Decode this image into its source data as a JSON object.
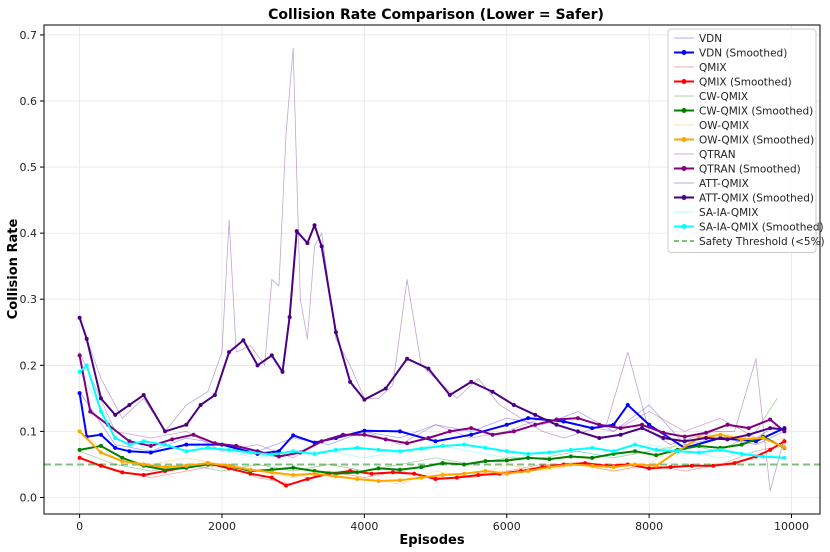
{
  "chart_data": {
    "type": "line",
    "title": "Collision Rate Comparison (Lower = Safer)",
    "xlabel": "Episodes",
    "ylabel": "Collision Rate",
    "xlim": [
      -500,
      10400
    ],
    "ylim": [
      -0.025,
      0.715
    ],
    "x_ticks": [
      0,
      2000,
      4000,
      6000,
      8000,
      10000
    ],
    "x_tick_labels": [
      "0",
      "2000",
      "4000",
      "6000",
      "8000",
      "10000"
    ],
    "y_ticks": [
      0.0,
      0.1,
      0.2,
      0.3,
      0.4,
      0.5,
      0.6,
      0.7
    ],
    "y_tick_labels": [
      "0.0",
      "0.1",
      "0.2",
      "0.3",
      "0.4",
      "0.5",
      "0.6",
      "0.7"
    ],
    "grid": true,
    "legend_position": "top-right",
    "threshold": {
      "label": "Safety Threshold (<5%)",
      "value": 0.05,
      "color": "#7fbf7f"
    },
    "series": [
      {
        "name": "VDN",
        "color": "#0000ff",
        "kind": "raw",
        "x": [
          0,
          500,
          1000,
          1500,
          2000,
          2500,
          3000,
          3500,
          4000,
          4500,
          5000,
          5500,
          6000,
          6500,
          7000,
          7500,
          8000,
          8500,
          9000,
          9500,
          9900
        ],
        "y": [
          0.16,
          0.08,
          0.07,
          0.09,
          0.08,
          0.07,
          0.09,
          0.08,
          0.1,
          0.09,
          0.11,
          0.1,
          0.12,
          0.11,
          0.13,
          0.1,
          0.14,
          0.08,
          0.09,
          0.08,
          0.1
        ]
      },
      {
        "name": "VDN (Smoothed)",
        "color": "#0000ff",
        "kind": "smooth",
        "x": [
          0,
          100,
          300,
          500,
          700,
          1000,
          1500,
          2000,
          2500,
          2800,
          3000,
          3300,
          3600,
          4000,
          4500,
          5000,
          5500,
          6000,
          6300,
          6800,
          7200,
          7500,
          7700,
          8000,
          8500,
          9000,
          9500,
          9900
        ],
        "y": [
          0.158,
          0.092,
          0.095,
          0.075,
          0.07,
          0.068,
          0.08,
          0.08,
          0.066,
          0.07,
          0.094,
          0.083,
          0.09,
          0.101,
          0.1,
          0.085,
          0.095,
          0.11,
          0.12,
          0.115,
          0.105,
          0.11,
          0.14,
          0.11,
          0.075,
          0.09,
          0.085,
          0.105
        ]
      },
      {
        "name": "QMIX",
        "color": "#ff0000",
        "kind": "raw",
        "x": [
          0,
          500,
          1000,
          1500,
          2000,
          2500,
          3000,
          3500,
          4000,
          4500,
          5000,
          5500,
          6000,
          6500,
          7000,
          7500,
          8000,
          8500,
          9000,
          9500,
          9900
        ],
        "y": [
          0.06,
          0.04,
          0.03,
          0.04,
          0.05,
          0.03,
          0.02,
          0.04,
          0.03,
          0.04,
          0.03,
          0.03,
          0.04,
          0.05,
          0.05,
          0.04,
          0.05,
          0.04,
          0.05,
          0.07,
          0.08
        ]
      },
      {
        "name": "QMIX (Smoothed)",
        "color": "#ff0000",
        "kind": "smooth",
        "x": [
          0,
          300,
          600,
          900,
          1200,
          1500,
          1800,
          2100,
          2400,
          2700,
          2900,
          3200,
          3500,
          3800,
          4100,
          4400,
          4700,
          5000,
          5300,
          5600,
          5900,
          6200,
          6500,
          6800,
          7100,
          7400,
          7700,
          8000,
          8300,
          8600,
          8900,
          9200,
          9500,
          9700,
          9900
        ],
        "y": [
          0.06,
          0.048,
          0.038,
          0.034,
          0.04,
          0.046,
          0.052,
          0.044,
          0.036,
          0.03,
          0.018,
          0.028,
          0.036,
          0.04,
          0.036,
          0.038,
          0.036,
          0.028,
          0.03,
          0.034,
          0.036,
          0.04,
          0.046,
          0.05,
          0.052,
          0.048,
          0.05,
          0.044,
          0.046,
          0.048,
          0.048,
          0.052,
          0.062,
          0.072,
          0.085
        ]
      },
      {
        "name": "CW-QMIX",
        "color": "#008000",
        "kind": "raw",
        "x": [
          0,
          500,
          1000,
          1500,
          2000,
          2500,
          3000,
          3500,
          4000,
          4500,
          5000,
          5500,
          6000,
          6500,
          7000,
          7500,
          8000,
          8500,
          9000,
          9500,
          9800
        ],
        "y": [
          0.07,
          0.05,
          0.04,
          0.05,
          0.04,
          0.05,
          0.04,
          0.05,
          0.04,
          0.05,
          0.06,
          0.05,
          0.06,
          0.06,
          0.07,
          0.06,
          0.07,
          0.08,
          0.07,
          0.1,
          0.15
        ]
      },
      {
        "name": "CW-QMIX (Smoothed)",
        "color": "#008000",
        "kind": "smooth",
        "x": [
          0,
          300,
          600,
          900,
          1200,
          1500,
          1800,
          2100,
          2400,
          2700,
          3000,
          3300,
          3600,
          3900,
          4200,
          4500,
          4800,
          5100,
          5400,
          5700,
          6000,
          6300,
          6600,
          6900,
          7200,
          7500,
          7800,
          8100,
          8400,
          8700,
          9000,
          9300,
          9600,
          9900
        ],
        "y": [
          0.072,
          0.078,
          0.06,
          0.048,
          0.042,
          0.045,
          0.05,
          0.048,
          0.04,
          0.042,
          0.045,
          0.04,
          0.036,
          0.038,
          0.044,
          0.042,
          0.046,
          0.052,
          0.05,
          0.055,
          0.056,
          0.06,
          0.058,
          0.062,
          0.06,
          0.066,
          0.07,
          0.064,
          0.072,
          0.078,
          0.075,
          0.08,
          0.092,
          0.075
        ]
      },
      {
        "name": "OW-QMIX",
        "color": "#ffa500",
        "kind": "raw",
        "x": [
          0,
          500,
          1000,
          1500,
          2000,
          2500,
          3000,
          3500,
          4000,
          4500,
          5000,
          5500,
          6000,
          6500,
          7000,
          7500,
          8000,
          8500,
          9000,
          9500,
          9900
        ],
        "y": [
          0.1,
          0.06,
          0.05,
          0.06,
          0.05,
          0.04,
          0.03,
          0.04,
          0.03,
          0.02,
          0.04,
          0.03,
          0.05,
          0.04,
          0.05,
          0.04,
          0.05,
          0.09,
          0.1,
          0.08,
          0.09
        ]
      },
      {
        "name": "OW-QMIX (Smoothed)",
        "color": "#ffa500",
        "kind": "smooth",
        "x": [
          0,
          300,
          600,
          900,
          1200,
          1500,
          1800,
          2100,
          2400,
          2700,
          3000,
          3300,
          3600,
          3900,
          4200,
          4500,
          4800,
          5100,
          5400,
          5700,
          6000,
          6300,
          6600,
          6900,
          7200,
          7500,
          7800,
          8100,
          8400,
          8700,
          9000,
          9300,
          9600,
          9900
        ],
        "y": [
          0.1,
          0.068,
          0.055,
          0.05,
          0.046,
          0.048,
          0.052,
          0.048,
          0.042,
          0.038,
          0.034,
          0.036,
          0.032,
          0.028,
          0.025,
          0.026,
          0.03,
          0.034,
          0.036,
          0.04,
          0.036,
          0.04,
          0.046,
          0.05,
          0.048,
          0.046,
          0.05,
          0.048,
          0.07,
          0.09,
          0.095,
          0.088,
          0.09,
          0.076
        ]
      },
      {
        "name": "QTRAN",
        "color": "#800080",
        "kind": "raw",
        "x": [
          0,
          500,
          1000,
          1500,
          2000,
          2500,
          3000,
          3500,
          4000,
          4500,
          5000,
          5500,
          6000,
          6500,
          7000,
          7500,
          8000,
          8500,
          9000,
          9500,
          9800
        ],
        "y": [
          0.22,
          0.1,
          0.09,
          0.1,
          0.07,
          0.08,
          0.06,
          0.09,
          0.1,
          0.08,
          0.11,
          0.09,
          0.1,
          0.12,
          0.11,
          0.1,
          0.13,
          0.1,
          0.12,
          0.09,
          0.11
        ]
      },
      {
        "name": "QTRAN (Smoothed)",
        "color": "#800080",
        "kind": "smooth",
        "x": [
          0,
          150,
          400,
          700,
          1000,
          1300,
          1600,
          1900,
          2200,
          2500,
          2800,
          3100,
          3400,
          3700,
          4000,
          4300,
          4600,
          4900,
          5200,
          5500,
          5800,
          6100,
          6400,
          6700,
          7000,
          7300,
          7600,
          7900,
          8200,
          8500,
          8800,
          9100,
          9400,
          9700,
          9900
        ],
        "y": [
          0.215,
          0.13,
          0.11,
          0.085,
          0.078,
          0.088,
          0.095,
          0.082,
          0.078,
          0.07,
          0.062,
          0.068,
          0.085,
          0.095,
          0.095,
          0.088,
          0.082,
          0.09,
          0.1,
          0.105,
          0.095,
          0.1,
          0.11,
          0.118,
          0.12,
          0.11,
          0.105,
          0.11,
          0.098,
          0.092,
          0.098,
          0.11,
          0.105,
          0.118,
          0.1
        ]
      },
      {
        "name": "ATT-QMIX",
        "color": "#4b0082",
        "kind": "raw",
        "x": [
          0,
          300,
          600,
          900,
          1200,
          1500,
          1800,
          2000,
          2100,
          2200,
          2400,
          2600,
          2700,
          2800,
          2900,
          3000,
          3100,
          3200,
          3300,
          3400,
          3600,
          3800,
          4000,
          4200,
          4400,
          4600,
          4800,
          5000,
          5300,
          5600,
          5900,
          6200,
          6500,
          6800,
          7100,
          7400,
          7700,
          8000,
          8300,
          8600,
          8900,
          9200,
          9500,
          9700,
          9900
        ],
        "y": [
          0.27,
          0.18,
          0.12,
          0.15,
          0.1,
          0.14,
          0.16,
          0.22,
          0.42,
          0.22,
          0.23,
          0.2,
          0.33,
          0.32,
          0.55,
          0.68,
          0.3,
          0.24,
          0.38,
          0.4,
          0.24,
          0.2,
          0.15,
          0.15,
          0.17,
          0.33,
          0.2,
          0.18,
          0.15,
          0.18,
          0.14,
          0.12,
          0.1,
          0.09,
          0.1,
          0.11,
          0.22,
          0.1,
          0.08,
          0.09,
          0.1,
          0.1,
          0.21,
          0.01,
          0.09
        ]
      },
      {
        "name": "ATT-QMIX (Smoothed)",
        "color": "#4b0082",
        "kind": "smooth",
        "x": [
          0,
          100,
          300,
          500,
          700,
          900,
          1200,
          1500,
          1700,
          1900,
          2100,
          2300,
          2500,
          2700,
          2850,
          2950,
          3050,
          3200,
          3300,
          3400,
          3600,
          3800,
          4000,
          4300,
          4600,
          4900,
          5200,
          5500,
          5800,
          6100,
          6400,
          6700,
          7000,
          7300,
          7600,
          7900,
          8200,
          8500,
          8800,
          9100,
          9400,
          9700,
          9900
        ],
        "y": [
          0.272,
          0.24,
          0.15,
          0.125,
          0.14,
          0.155,
          0.1,
          0.11,
          0.14,
          0.155,
          0.22,
          0.238,
          0.2,
          0.215,
          0.19,
          0.273,
          0.403,
          0.385,
          0.412,
          0.38,
          0.25,
          0.175,
          0.148,
          0.165,
          0.21,
          0.195,
          0.155,
          0.175,
          0.16,
          0.14,
          0.125,
          0.11,
          0.1,
          0.09,
          0.095,
          0.105,
          0.09,
          0.085,
          0.09,
          0.088,
          0.095,
          0.105,
          0.103
        ]
      },
      {
        "name": "SA-IA-QMIX",
        "color": "#00ffff",
        "kind": "raw",
        "x": [
          0,
          500,
          1000,
          1500,
          2000,
          2500,
          3000,
          3500,
          4000,
          4500,
          5000,
          5500,
          6000,
          6500,
          7000,
          7500,
          8000,
          8500,
          9000,
          9500,
          9900
        ],
        "y": [
          0.19,
          0.1,
          0.07,
          0.08,
          0.07,
          0.06,
          0.07,
          0.07,
          0.06,
          0.07,
          0.08,
          0.07,
          0.06,
          0.07,
          0.07,
          0.06,
          0.08,
          0.07,
          0.06,
          0.07,
          0.06
        ]
      },
      {
        "name": "SA-IA-QMIX (Smoothed)",
        "color": "#00ffff",
        "kind": "smooth",
        "x": [
          0,
          100,
          300,
          500,
          700,
          900,
          1200,
          1500,
          1800,
          2100,
          2400,
          2700,
          3000,
          3300,
          3600,
          3900,
          4200,
          4500,
          4800,
          5100,
          5400,
          5700,
          6000,
          6300,
          6600,
          6900,
          7200,
          7500,
          7800,
          8100,
          8400,
          8700,
          9000,
          9300,
          9600,
          9900
        ],
        "y": [
          0.19,
          0.2,
          0.13,
          0.09,
          0.08,
          0.085,
          0.08,
          0.07,
          0.075,
          0.072,
          0.068,
          0.065,
          0.07,
          0.066,
          0.072,
          0.075,
          0.072,
          0.07,
          0.074,
          0.078,
          0.08,
          0.075,
          0.07,
          0.066,
          0.068,
          0.072,
          0.075,
          0.07,
          0.08,
          0.072,
          0.07,
          0.068,
          0.072,
          0.066,
          0.062,
          0.06
        ]
      }
    ]
  }
}
